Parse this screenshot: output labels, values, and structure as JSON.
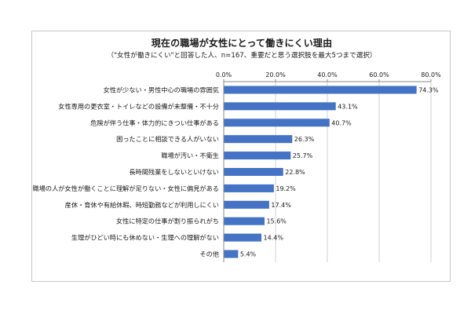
{
  "chart_data": {
    "type": "bar",
    "orientation": "horizontal",
    "title": "現在の職場が女性にとって働きにくい理由",
    "subtitle": "（\"女性が働きにくい\"と回答した人、n=167、重要だと思う選択肢を最大5つまで選択）",
    "categories": [
      "女性が少ない・男性中心の職場の雰囲気",
      "女性専用の更衣室・トイレなどの設備が未整備・不十分",
      "危険が伴う仕事・体力的にきつい仕事がある",
      "困ったことに相談できる人がいない",
      "職場が汚い・不衛生",
      "長時間残業をしないといけない",
      "職場の人が女性が働くことに理解が足りない・女性に偏見がある",
      "産休・育休や有給休暇、時短勤務などが利用しにくい",
      "女性に特定の仕事が割り振られがち",
      "生理がひどい時にも休めない・生理への理解がない",
      "その他"
    ],
    "values": [
      74.3,
      43.1,
      40.7,
      26.3,
      25.7,
      22.8,
      19.2,
      17.4,
      15.6,
      14.4,
      5.4
    ],
    "value_labels": [
      "74.3%",
      "43.1%",
      "40.7%",
      "26.3%",
      "25.7%",
      "22.8%",
      "19.2%",
      "17.4%",
      "15.6%",
      "14.4%",
      "5.4%"
    ],
    "xlim": [
      0,
      80
    ],
    "xticks": [
      0,
      20,
      40,
      60,
      80
    ],
    "xtick_labels": [
      "0.0%",
      "20.0%",
      "40.0%",
      "60.0%",
      "80.0%"
    ],
    "axis_position": "top",
    "grid": true,
    "bar_color": "#4472c4",
    "grid_color": "#d0d0d0"
  }
}
